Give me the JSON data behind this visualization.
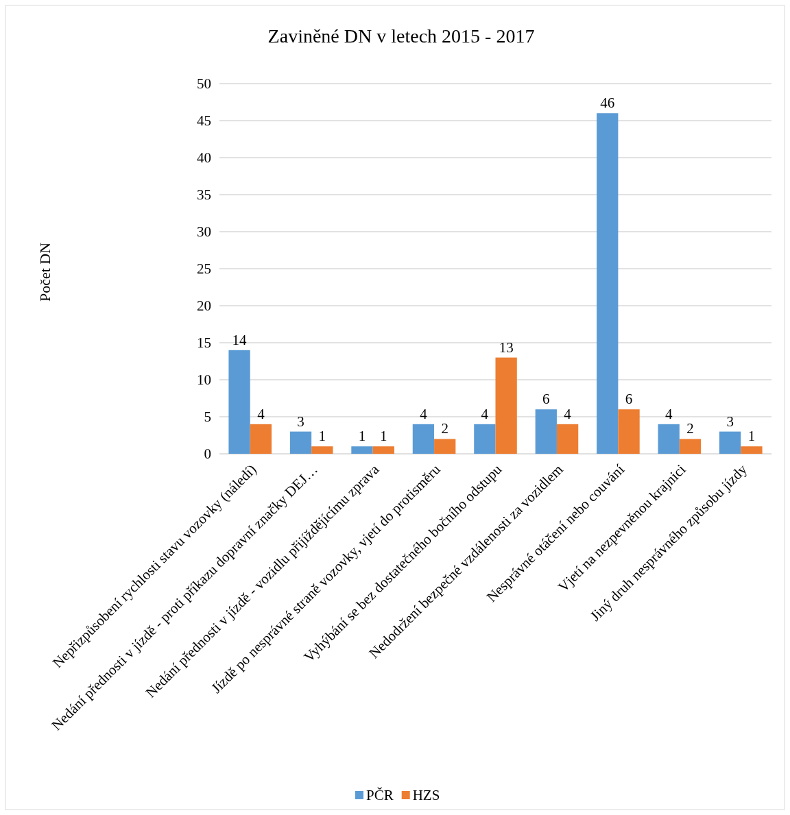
{
  "chart_data": {
    "type": "bar",
    "title": "Zaviněné DN v letech 2015 - 2017",
    "ylabel": "Počet DN",
    "categories": [
      "Nepřizpůsobení rychlosti stavu vozovky (náledí)",
      "Nedání přednosti v jízdě - proti příkazu dopravní značky DEJ…",
      "Nedání přednosti v jízdě - vozidlu přijíždějícímu zprava",
      "Jízdě po nesprávné straně vozovky, vjetí do protisměru",
      "Vyhýbání se bez dostatečného bočního odstupu",
      "Nedodržení bezpečné vzdálenosti za vozidlem",
      "Nesprávné otáčení nebo couvání",
      "Vjetí na nezpevněnou krajnici",
      "Jiný druh nesprávného způsobu jízdy"
    ],
    "series": [
      {
        "name": "PČR",
        "color": "#5b9bd5",
        "values": [
          14,
          3,
          1,
          4,
          4,
          6,
          46,
          4,
          3
        ]
      },
      {
        "name": "HZS",
        "color": "#ed7d31",
        "values": [
          4,
          1,
          1,
          2,
          13,
          4,
          6,
          2,
          1
        ]
      }
    ],
    "ylim": [
      0,
      50
    ],
    "yticks": [
      0,
      5,
      10,
      15,
      20,
      25,
      30,
      35,
      40,
      45,
      50
    ],
    "grid": "y",
    "legend": "bottom",
    "data_labels": true
  }
}
